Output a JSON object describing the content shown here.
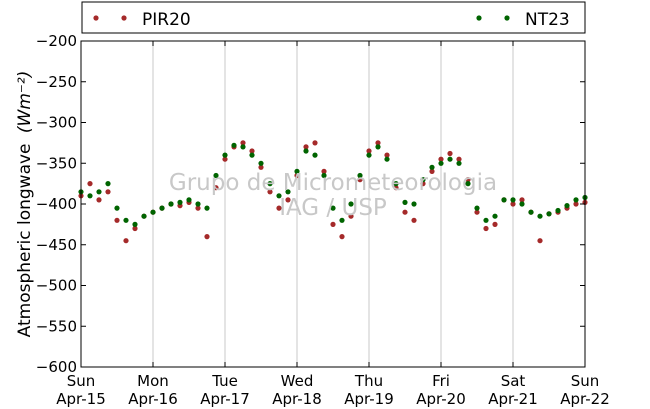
{
  "chart_data": {
    "type": "scatter",
    "ylabel": "Atmospheric longwave",
    "ylabel_unit": "(Wm⁻²)",
    "xlim": [
      "2012-04-15T00:00",
      "2012-04-22T00:00"
    ],
    "ylim": [
      -600,
      -200
    ],
    "yticks": [
      -600,
      -550,
      -500,
      -450,
      -400,
      -350,
      -300,
      -250,
      -200
    ],
    "xticks": [
      {
        "value": "2012-04-15T00:00",
        "day": "Sun",
        "date": "Apr-15"
      },
      {
        "value": "2012-04-16T00:00",
        "day": "Mon",
        "date": "Apr-16"
      },
      {
        "value": "2012-04-17T00:00",
        "day": "Tue",
        "date": "Apr-17"
      },
      {
        "value": "2012-04-18T00:00",
        "day": "Wed",
        "date": "Apr-18"
      },
      {
        "value": "2012-04-19T00:00",
        "day": "Thu",
        "date": "Apr-19"
      },
      {
        "value": "2012-04-20T00:00",
        "day": "Fri",
        "date": "Apr-20"
      },
      {
        "value": "2012-04-21T00:00",
        "day": "Sat",
        "date": "Apr-21"
      },
      {
        "value": "2012-04-22T00:00",
        "day": "Sun",
        "date": "Apr-22"
      }
    ],
    "grid": "vertical",
    "legend": "top-outside",
    "watermark": [
      "Grupo de Micrometeorologia",
      "IAG / USP"
    ],
    "series": [
      {
        "name": "PIR20",
        "color": "#a52a2a",
        "points": [
          [
            "2012-04-15T00:00",
            -390
          ],
          [
            "2012-04-15T03:00",
            -375
          ],
          [
            "2012-04-15T06:00",
            -395
          ],
          [
            "2012-04-15T09:00",
            -385
          ],
          [
            "2012-04-15T12:00",
            -420
          ],
          [
            "2012-04-15T15:00",
            -445
          ],
          [
            "2012-04-15T18:00",
            -430
          ],
          [
            "2012-04-15T21:00",
            -415
          ],
          [
            "2012-04-16T00:00",
            -410
          ],
          [
            "2012-04-16T03:00",
            -405
          ],
          [
            "2012-04-16T06:00",
            -400
          ],
          [
            "2012-04-16T09:00",
            -402
          ],
          [
            "2012-04-16T12:00",
            -398
          ],
          [
            "2012-04-16T15:00",
            -405
          ],
          [
            "2012-04-16T18:00",
            -440
          ],
          [
            "2012-04-16T21:00",
            -380
          ],
          [
            "2012-04-17T00:00",
            -345
          ],
          [
            "2012-04-17T03:00",
            -330
          ],
          [
            "2012-04-17T06:00",
            -325
          ],
          [
            "2012-04-17T09:00",
            -335
          ],
          [
            "2012-04-17T12:00",
            -355
          ],
          [
            "2012-04-17T15:00",
            -385
          ],
          [
            "2012-04-17T18:00",
            -405
          ],
          [
            "2012-04-17T21:00",
            -395
          ],
          [
            "2012-04-18T00:00",
            -365
          ],
          [
            "2012-04-18T03:00",
            -330
          ],
          [
            "2012-04-18T06:00",
            -325
          ],
          [
            "2012-04-18T09:00",
            -360
          ],
          [
            "2012-04-18T12:00",
            -425
          ],
          [
            "2012-04-18T15:00",
            -440
          ],
          [
            "2012-04-18T18:00",
            -415
          ],
          [
            "2012-04-18T21:00",
            -370
          ],
          [
            "2012-04-19T00:00",
            -335
          ],
          [
            "2012-04-19T03:00",
            -325
          ],
          [
            "2012-04-19T06:00",
            -340
          ],
          [
            "2012-04-19T09:00",
            -380
          ],
          [
            "2012-04-19T12:00",
            -410
          ],
          [
            "2012-04-19T15:00",
            -420
          ],
          [
            "2012-04-19T18:00",
            -375
          ],
          [
            "2012-04-19T21:00",
            -360
          ],
          [
            "2012-04-20T00:00",
            -345
          ],
          [
            "2012-04-20T03:00",
            -338
          ],
          [
            "2012-04-20T06:00",
            -345
          ],
          [
            "2012-04-20T09:00",
            -370
          ],
          [
            "2012-04-20T12:00",
            -410
          ],
          [
            "2012-04-20T15:00",
            -430
          ],
          [
            "2012-04-20T18:00",
            -425
          ],
          [
            "2012-04-20T21:00",
            -395
          ],
          [
            "2012-04-21T00:00",
            -400
          ],
          [
            "2012-04-21T03:00",
            -395
          ],
          [
            "2012-04-21T06:00",
            -410
          ],
          [
            "2012-04-21T09:00",
            -445
          ],
          [
            "2012-04-21T12:00",
            -412
          ],
          [
            "2012-04-21T15:00",
            -410
          ],
          [
            "2012-04-21T18:00",
            -405
          ],
          [
            "2012-04-21T21:00",
            -400
          ],
          [
            "2012-04-22T00:00",
            -398
          ]
        ]
      },
      {
        "name": "NT23",
        "color": "#006400",
        "points": [
          [
            "2012-04-15T00:00",
            -385
          ],
          [
            "2012-04-15T03:00",
            -390
          ],
          [
            "2012-04-15T06:00",
            -385
          ],
          [
            "2012-04-15T09:00",
            -375
          ],
          [
            "2012-04-15T12:00",
            -405
          ],
          [
            "2012-04-15T15:00",
            -420
          ],
          [
            "2012-04-15T18:00",
            -425
          ],
          [
            "2012-04-15T21:00",
            -415
          ],
          [
            "2012-04-16T00:00",
            -410
          ],
          [
            "2012-04-16T03:00",
            -405
          ],
          [
            "2012-04-16T06:00",
            -400
          ],
          [
            "2012-04-16T09:00",
            -398
          ],
          [
            "2012-04-16T12:00",
            -395
          ],
          [
            "2012-04-16T15:00",
            -400
          ],
          [
            "2012-04-16T18:00",
            -405
          ],
          [
            "2012-04-16T21:00",
            -365
          ],
          [
            "2012-04-17T00:00",
            -340
          ],
          [
            "2012-04-17T03:00",
            -328
          ],
          [
            "2012-04-17T06:00",
            -330
          ],
          [
            "2012-04-17T09:00",
            -340
          ],
          [
            "2012-04-17T12:00",
            -350
          ],
          [
            "2012-04-17T15:00",
            -375
          ],
          [
            "2012-04-17T18:00",
            -390
          ],
          [
            "2012-04-17T21:00",
            -385
          ],
          [
            "2012-04-18T00:00",
            -360
          ],
          [
            "2012-04-18T03:00",
            -335
          ],
          [
            "2012-04-18T06:00",
            -340
          ],
          [
            "2012-04-18T09:00",
            -365
          ],
          [
            "2012-04-18T12:00",
            -405
          ],
          [
            "2012-04-18T15:00",
            -420
          ],
          [
            "2012-04-18T18:00",
            -400
          ],
          [
            "2012-04-18T21:00",
            -365
          ],
          [
            "2012-04-19T00:00",
            -340
          ],
          [
            "2012-04-19T03:00",
            -330
          ],
          [
            "2012-04-19T06:00",
            -345
          ],
          [
            "2012-04-19T09:00",
            -375
          ],
          [
            "2012-04-19T12:00",
            -398
          ],
          [
            "2012-04-19T15:00",
            -400
          ],
          [
            "2012-04-19T18:00",
            -370
          ],
          [
            "2012-04-19T21:00",
            -355
          ],
          [
            "2012-04-20T00:00",
            -350
          ],
          [
            "2012-04-20T03:00",
            -345
          ],
          [
            "2012-04-20T06:00",
            -350
          ],
          [
            "2012-04-20T09:00",
            -375
          ],
          [
            "2012-04-20T12:00",
            -405
          ],
          [
            "2012-04-20T15:00",
            -420
          ],
          [
            "2012-04-20T18:00",
            -415
          ],
          [
            "2012-04-20T21:00",
            -395
          ],
          [
            "2012-04-21T00:00",
            -395
          ],
          [
            "2012-04-21T03:00",
            -400
          ],
          [
            "2012-04-21T06:00",
            -410
          ],
          [
            "2012-04-21T09:00",
            -415
          ],
          [
            "2012-04-21T12:00",
            -412
          ],
          [
            "2012-04-21T15:00",
            -408
          ],
          [
            "2012-04-21T18:00",
            -402
          ],
          [
            "2012-04-21T21:00",
            -395
          ],
          [
            "2012-04-22T00:00",
            -392
          ]
        ]
      }
    ]
  }
}
